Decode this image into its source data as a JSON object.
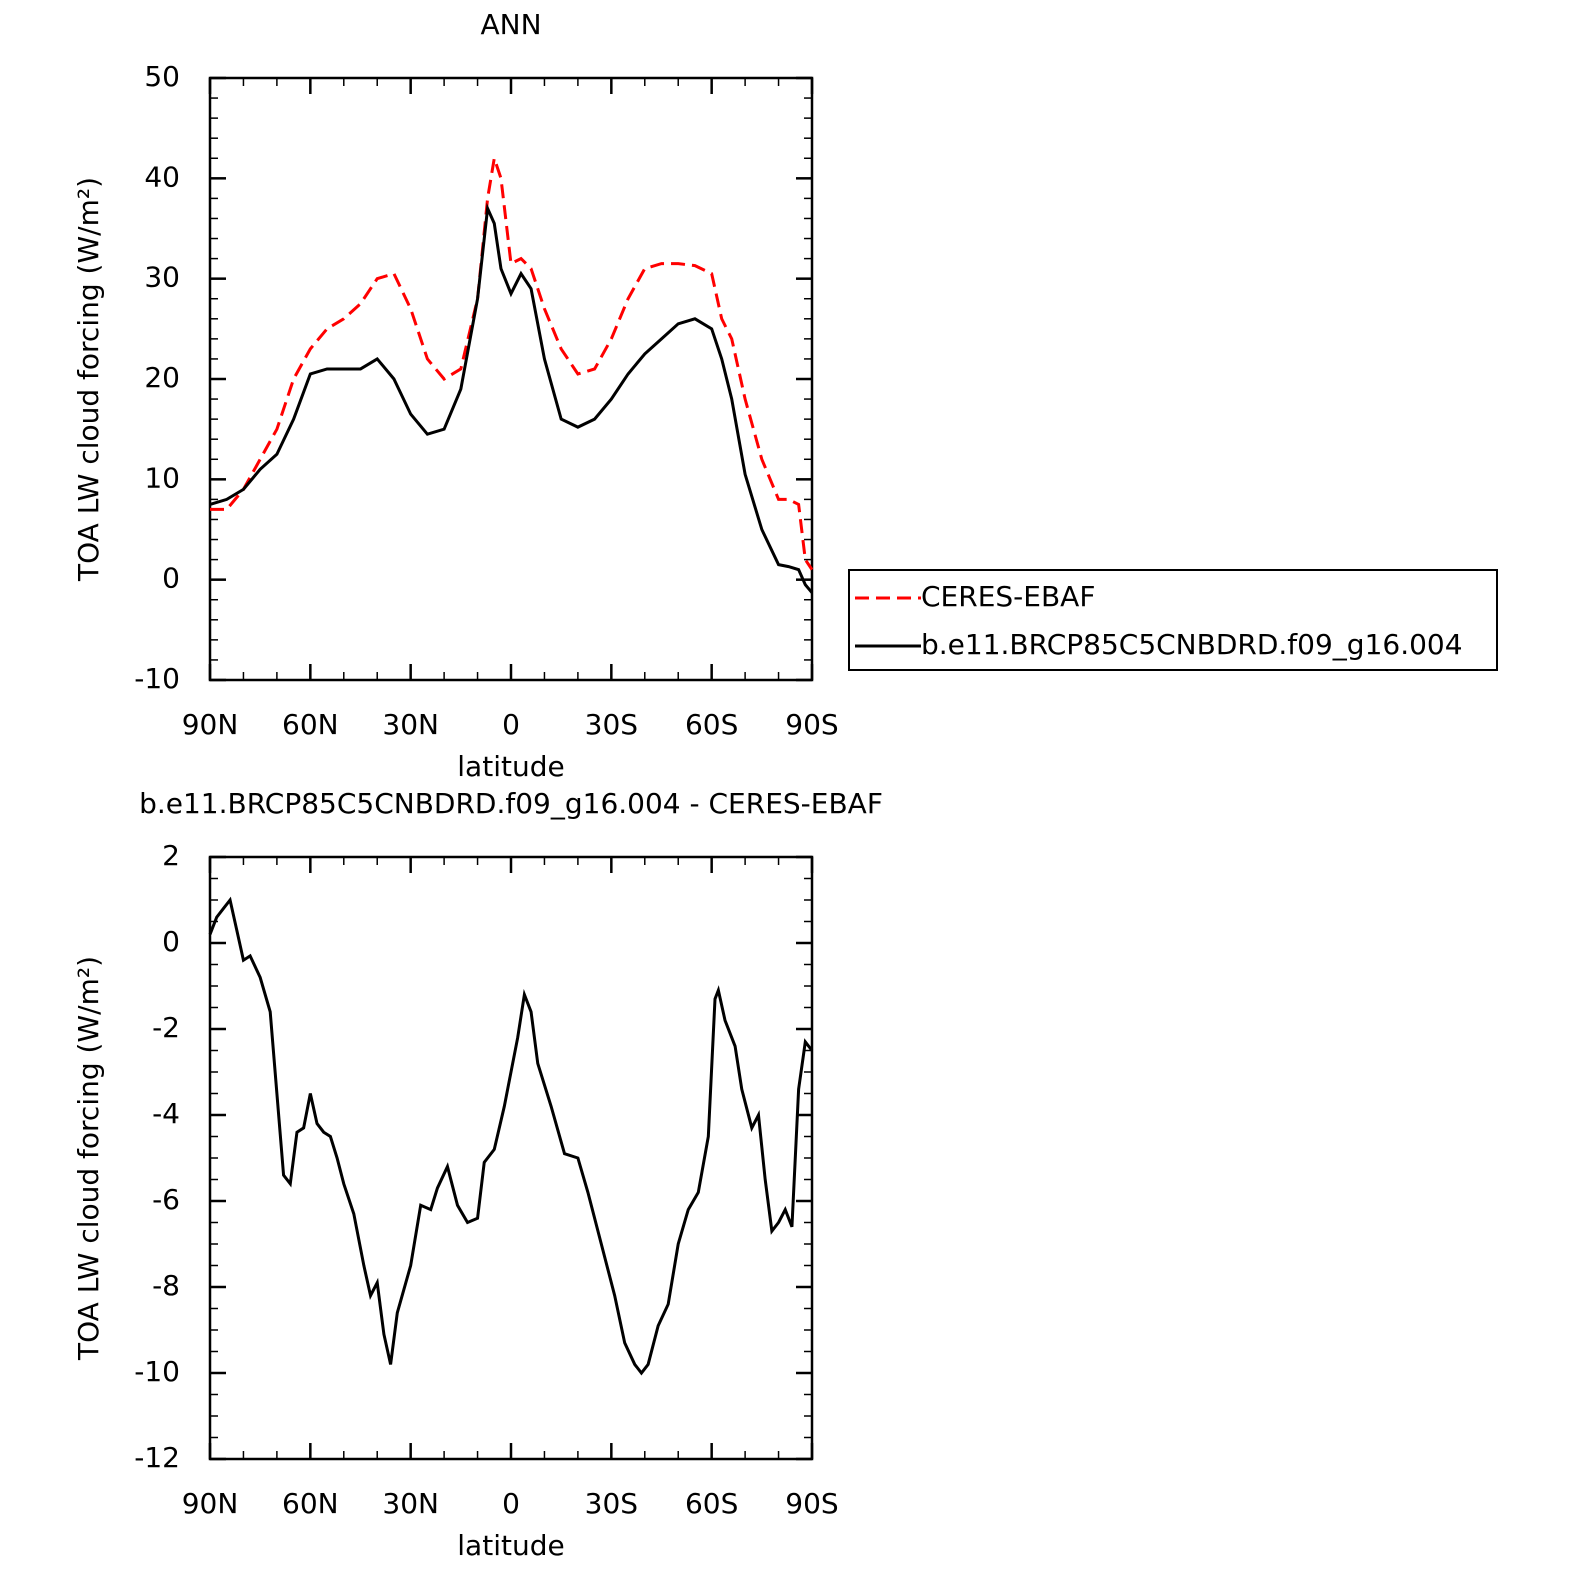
{
  "chart_data": [
    {
      "type": "line",
      "title": "ANN",
      "xlabel": "latitude",
      "ylabel": "TOA LW cloud forcing (W/m²)",
      "x": [
        90,
        85,
        80,
        75,
        70,
        65,
        60,
        55,
        50,
        45,
        40,
        35,
        30,
        25,
        20,
        15,
        10,
        7,
        5,
        3,
        0,
        -3,
        -6,
        -10,
        -15,
        -20,
        -25,
        -30,
        -35,
        -40,
        -45,
        -50,
        -55,
        -60,
        -63,
        -66,
        -70,
        -75,
        -80,
        -83,
        -86,
        -88,
        -90
      ],
      "series": [
        {
          "name": "CERES-EBAF",
          "color": "#ff0000",
          "linestyle": "dashed",
          "values": [
            7,
            7,
            9,
            12,
            15,
            20,
            23,
            25,
            26,
            27.5,
            30,
            30.5,
            27,
            22,
            20,
            21,
            28,
            38,
            42,
            40,
            31.5,
            32,
            31,
            27,
            23,
            20.5,
            21,
            24,
            28,
            31,
            31.5,
            31.5,
            31.3,
            30.5,
            26,
            24,
            18,
            12,
            8,
            8,
            7.5,
            2,
            1
          ]
        },
        {
          "name": "b.e11.BRCP85C5CNBDRD.f09_g16.004",
          "color": "#000000",
          "linestyle": "solid",
          "values": [
            7.5,
            8,
            9,
            11,
            12.5,
            16,
            20.5,
            21,
            21,
            21,
            22,
            20,
            16.5,
            14.5,
            15,
            19,
            28,
            37,
            35.5,
            31,
            28.5,
            30.5,
            29,
            22,
            16,
            15.2,
            16,
            18,
            20.5,
            22.5,
            24,
            25.5,
            26,
            25,
            22,
            18,
            10.5,
            5,
            1.5,
            1.3,
            1,
            -0.5,
            -1.3
          ]
        }
      ],
      "xlim": [
        90,
        -90
      ],
      "xticks": [
        {
          "value": 90,
          "label": "90N"
        },
        {
          "value": 60,
          "label": "60N"
        },
        {
          "value": 30,
          "label": "30N"
        },
        0,
        {
          "value": -30,
          "label": "30S"
        },
        {
          "value": -60,
          "label": "60S"
        },
        {
          "value": -90,
          "label": "90S"
        }
      ],
      "ylim": [
        -10,
        50
      ],
      "yticks": [
        -10,
        0,
        10,
        20,
        30,
        40,
        50
      ],
      "legend": "right"
    },
    {
      "type": "line",
      "title": "b.e11.BRCP85C5CNBDRD.f09_g16.004 - CERES-EBAF",
      "xlabel": "latitude",
      "ylabel": "TOA LW cloud forcing (W/m²)",
      "x": [
        90,
        88,
        86,
        84,
        82,
        80,
        78,
        75,
        72,
        70,
        68,
        66,
        64,
        62,
        60,
        58,
        56,
        54,
        52,
        50,
        47,
        44,
        42,
        40,
        38,
        36,
        34,
        30,
        27,
        24,
        22,
        19,
        16,
        13,
        10,
        8,
        5,
        2,
        0,
        -2,
        -4,
        -6,
        -8,
        -12,
        -16,
        -20,
        -23,
        -27,
        -31,
        -34,
        -37,
        -39,
        -41,
        -44,
        -47,
        -50,
        -53,
        -56,
        -59,
        -61,
        -62,
        -64,
        -67,
        -69,
        -72,
        -74,
        -76,
        -78,
        -80,
        -82,
        -84,
        -86,
        -88,
        -90
      ],
      "series": [
        {
          "name": "b.e11.BRCP85C5CNBDRD.f09_g16.004 - CERES-EBAF",
          "color": "#000000",
          "linestyle": "solid",
          "values": [
            0.2,
            0.6,
            0.8,
            1.0,
            0.3,
            -0.4,
            -0.3,
            -0.8,
            -1.6,
            -3.5,
            -5.4,
            -5.6,
            -4.4,
            -4.3,
            -3.5,
            -4.2,
            -4.4,
            -4.5,
            -5.0,
            -5.6,
            -6.3,
            -7.5,
            -8.2,
            -7.9,
            -9.1,
            -9.8,
            -8.6,
            -7.5,
            -6.1,
            -6.2,
            -5.7,
            -5.2,
            -6.1,
            -6.5,
            -6.4,
            -5.1,
            -4.8,
            -3.8,
            -3.0,
            -2.2,
            -1.2,
            -1.6,
            -2.8,
            -3.8,
            -4.9,
            -5.0,
            -5.8,
            -7.0,
            -8.2,
            -9.3,
            -9.8,
            -10.0,
            -9.8,
            -8.9,
            -8.4,
            -7.0,
            -6.2,
            -5.8,
            -4.5,
            -1.3,
            -1.1,
            -1.8,
            -2.4,
            -3.4,
            -4.3,
            -4.0,
            -5.5,
            -6.7,
            -6.5,
            -6.2,
            -6.6,
            -3.4,
            -2.3,
            -2.5
          ]
        }
      ],
      "xlim": [
        90,
        -90
      ],
      "xticks": [
        {
          "value": 90,
          "label": "90N"
        },
        {
          "value": 60,
          "label": "60N"
        },
        {
          "value": 30,
          "label": "30N"
        },
        0,
        {
          "value": -30,
          "label": "30S"
        },
        {
          "value": -60,
          "label": "60S"
        },
        {
          "value": -90,
          "label": "90S"
        }
      ],
      "ylim": [
        -12,
        2
      ],
      "yticks": [
        -12,
        -10,
        -8,
        -6,
        -4,
        -2,
        0,
        2
      ]
    }
  ]
}
